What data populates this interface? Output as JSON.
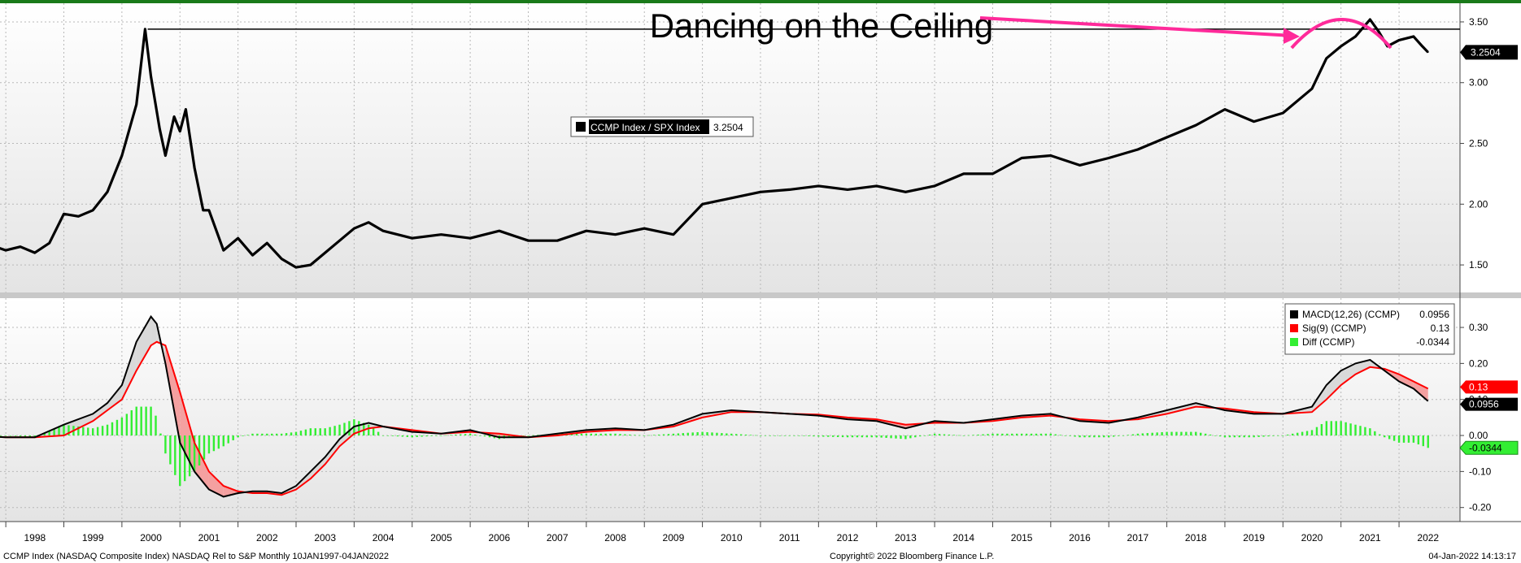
{
  "title": "Dancing on the Ceiling",
  "colors": {
    "ratio_line": "#000000",
    "macd_line": "#000000",
    "signal_line": "#ff0000",
    "diff_bar": "#33ee33",
    "annotation": "#ff2a9a",
    "fill_up": "#d9d9d9",
    "fill_down": "#f4a0a0"
  },
  "upper": {
    "legend_label": "CCMP Index / SPX Index",
    "legend_value": "3.2504",
    "last_value_label": "3.2504",
    "ceiling_level": 3.44,
    "ylim": [
      1.3,
      3.6
    ],
    "yticks": [
      "1.50",
      "2.00",
      "2.50",
      "3.00",
      "3.50"
    ]
  },
  "lower": {
    "legend": [
      {
        "label": "MACD(12,26) (CCMP)",
        "value": "0.0956",
        "color": "#000000"
      },
      {
        "label": "Sig(9) (CCMP)",
        "value": "0.13",
        "color": "#ff0000"
      },
      {
        "label": "Diff (CCMP)",
        "value": "-0.0344",
        "color": "#33ee33"
      }
    ],
    "tags": [
      {
        "text": "0.13",
        "bg": "#ff0000",
        "fg": "#ffffff",
        "value": 0.13
      },
      {
        "text": "0.0956",
        "bg": "#000000",
        "fg": "#ffffff",
        "value": 0.0956
      },
      {
        "text": "-0.0344",
        "bg": "#33ee33",
        "fg": "#000000",
        "value": -0.0344
      }
    ],
    "ylim": [
      -0.23,
      0.37
    ],
    "yticks": [
      "0.30",
      "0.20",
      "0.10",
      "0.00",
      "-0.10",
      "-0.20"
    ]
  },
  "x_axis": {
    "years": [
      "1998",
      "1999",
      "2000",
      "2001",
      "2002",
      "2003",
      "2004",
      "2005",
      "2006",
      "2007",
      "2008",
      "2009",
      "2010",
      "2011",
      "2012",
      "2013",
      "2014",
      "2015",
      "2016",
      "2017",
      "2018",
      "2019",
      "2020",
      "2021",
      "2022"
    ]
  },
  "footer": {
    "left": "CCMP Index (NASDAQ Composite Index) NASDAQ Rel to S&P  Monthly 10JAN1997-04JAN2022",
    "center": "Copyright© 2022 Bloomberg Finance L.P.",
    "right": "04-Jan-2022 14:13:17"
  },
  "chart_data": [
    {
      "type": "line",
      "series": [
        {
          "name": "CCMP Index / SPX Index",
          "x": [
            1997.0,
            1997.25,
            1997.5,
            1997.75,
            1998.0,
            1998.25,
            1998.5,
            1998.75,
            1999.0,
            1999.25,
            1999.5,
            1999.75,
            1999.9,
            2000.0,
            2000.15,
            2000.25,
            2000.4,
            2000.5,
            2000.6,
            2000.75,
            2000.9,
            2001.0,
            2001.25,
            2001.5,
            2001.75,
            2002.0,
            2002.25,
            2002.5,
            2002.75,
            2003.0,
            2003.25,
            2003.5,
            2003.75,
            2004.0,
            2004.5,
            2005.0,
            2005.5,
            2006.0,
            2006.5,
            2007.0,
            2007.5,
            2008.0,
            2008.5,
            2009.0,
            2009.5,
            2010.0,
            2010.5,
            2011.0,
            2011.5,
            2012.0,
            2012.5,
            2013.0,
            2013.5,
            2014.0,
            2014.5,
            2015.0,
            2015.5,
            2016.0,
            2016.5,
            2017.0,
            2017.5,
            2018.0,
            2018.5,
            2019.0,
            2019.5,
            2020.0,
            2020.25,
            2020.5,
            2020.75,
            2021.0,
            2021.15,
            2021.3,
            2021.5,
            2021.75,
            2021.9,
            2022.0
          ],
          "y": [
            1.68,
            1.66,
            1.62,
            1.65,
            1.6,
            1.68,
            1.92,
            1.9,
            1.95,
            2.1,
            2.4,
            2.82,
            3.44,
            3.05,
            2.62,
            2.4,
            2.72,
            2.6,
            2.78,
            2.3,
            1.95,
            1.95,
            1.62,
            1.72,
            1.58,
            1.68,
            1.55,
            1.48,
            1.5,
            1.6,
            1.7,
            1.8,
            1.85,
            1.78,
            1.72,
            1.75,
            1.72,
            1.78,
            1.7,
            1.7,
            1.78,
            1.75,
            1.8,
            1.75,
            2.0,
            2.05,
            2.1,
            2.12,
            2.15,
            2.12,
            2.15,
            2.1,
            2.15,
            2.25,
            2.25,
            2.38,
            2.4,
            2.32,
            2.38,
            2.45,
            2.55,
            2.65,
            2.78,
            2.68,
            2.75,
            2.95,
            3.2,
            3.3,
            3.38,
            3.52,
            3.42,
            3.3,
            3.35,
            3.38,
            3.3,
            3.25
          ]
        }
      ],
      "ylim": [
        1.3,
        3.6
      ]
    },
    {
      "type": "line",
      "x": [
        1997.0,
        1997.5,
        1998.0,
        1998.5,
        1999.0,
        1999.25,
        1999.5,
        1999.75,
        2000.0,
        2000.1,
        2000.25,
        2000.5,
        2000.75,
        2001.0,
        2001.25,
        2001.5,
        2001.75,
        2002.0,
        2002.25,
        2002.5,
        2002.75,
        2003.0,
        2003.25,
        2003.5,
        2003.75,
        2004.0,
        2004.5,
        2005.0,
        2005.5,
        2006.0,
        2006.5,
        2007.0,
        2007.5,
        2008.0,
        2008.5,
        2009.0,
        2009.5,
        2010.0,
        2010.5,
        2011.0,
        2011.5,
        2012.0,
        2012.5,
        2013.0,
        2013.5,
        2014.0,
        2014.5,
        2015.0,
        2015.5,
        2016.0,
        2016.5,
        2017.0,
        2017.5,
        2018.0,
        2018.5,
        2019.0,
        2019.5,
        2020.0,
        2020.25,
        2020.5,
        2020.75,
        2021.0,
        2021.25,
        2021.5,
        2021.75,
        2022.0
      ],
      "series": [
        {
          "name": "MACD(12,26) (CCMP)",
          "values": [
            0.0,
            -0.005,
            -0.005,
            0.03,
            0.06,
            0.09,
            0.14,
            0.26,
            0.33,
            0.31,
            0.2,
            -0.02,
            -0.1,
            -0.15,
            -0.17,
            -0.16,
            -0.155,
            -0.155,
            -0.16,
            -0.14,
            -0.1,
            -0.06,
            -0.01,
            0.025,
            0.035,
            0.025,
            0.01,
            0.005,
            0.015,
            -0.005,
            -0.005,
            0.005,
            0.015,
            0.02,
            0.015,
            0.03,
            0.06,
            0.07,
            0.065,
            0.06,
            0.055,
            0.045,
            0.04,
            0.02,
            0.04,
            0.035,
            0.045,
            0.055,
            0.06,
            0.04,
            0.035,
            0.05,
            0.07,
            0.09,
            0.07,
            0.06,
            0.06,
            0.08,
            0.14,
            0.18,
            0.2,
            0.21,
            0.18,
            0.15,
            0.13,
            0.0956
          ]
        },
        {
          "name": "Sig(9) (CCMP)",
          "values": [
            0.0,
            -0.005,
            -0.005,
            0.0,
            0.04,
            0.07,
            0.1,
            0.18,
            0.25,
            0.26,
            0.25,
            0.12,
            -0.02,
            -0.1,
            -0.14,
            -0.155,
            -0.16,
            -0.16,
            -0.165,
            -0.15,
            -0.12,
            -0.08,
            -0.03,
            0.005,
            0.02,
            0.025,
            0.015,
            0.005,
            0.01,
            0.005,
            -0.005,
            0.0,
            0.01,
            0.015,
            0.015,
            0.025,
            0.05,
            0.065,
            0.065,
            0.06,
            0.058,
            0.05,
            0.045,
            0.03,
            0.035,
            0.035,
            0.04,
            0.05,
            0.055,
            0.045,
            0.04,
            0.045,
            0.06,
            0.08,
            0.075,
            0.065,
            0.06,
            0.065,
            0.1,
            0.14,
            0.17,
            0.19,
            0.185,
            0.17,
            0.15,
            0.13
          ]
        },
        {
          "name": "Diff (CCMP)",
          "values": [
            0.0,
            0.0,
            -0.005,
            0.03,
            0.02,
            0.03,
            0.05,
            0.08,
            0.08,
            0.05,
            -0.05,
            -0.14,
            -0.1,
            -0.05,
            -0.03,
            -0.005,
            0.005,
            0.005,
            0.005,
            0.01,
            0.02,
            0.02,
            0.03,
            0.045,
            0.03,
            0.0,
            -0.005,
            0.0,
            0.005,
            -0.01,
            0.0,
            0.005,
            0.005,
            0.005,
            0.0,
            0.005,
            0.01,
            0.005,
            0.0,
            0.0,
            -0.003,
            -0.005,
            -0.005,
            -0.01,
            0.005,
            0.0,
            0.005,
            0.005,
            0.005,
            -0.005,
            -0.005,
            0.005,
            0.01,
            0.01,
            -0.005,
            -0.005,
            0.0,
            0.015,
            0.04,
            0.04,
            0.03,
            0.02,
            -0.005,
            -0.02,
            -0.02,
            -0.0344
          ]
        }
      ],
      "ylim": [
        -0.23,
        0.37
      ]
    }
  ]
}
